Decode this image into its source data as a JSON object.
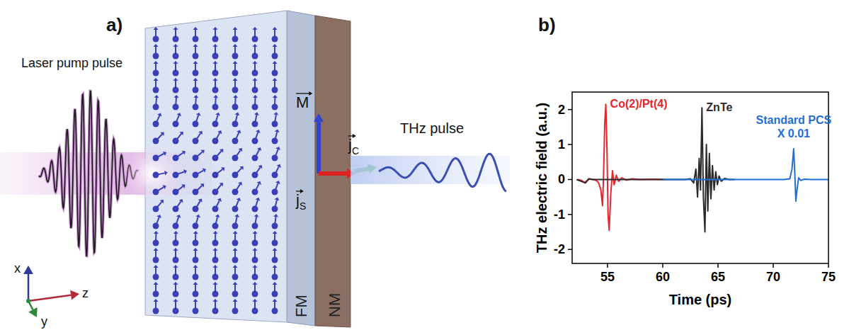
{
  "diagram": {
    "panel_label": "a)",
    "pump_label": "Laser pump pulse",
    "thz_label": "THz pulse",
    "layers": [
      "FM",
      "NM"
    ],
    "vectors": {
      "magnetization": {
        "symbol": "M"
      },
      "spin_current": {
        "symbol": "j",
        "subscript": "S"
      },
      "charge_current": {
        "symbol": "j",
        "subscript": "C"
      }
    },
    "axes": {
      "x": "x",
      "y": "y",
      "z": "z"
    }
  },
  "chart_data": {
    "type": "line",
    "panel_label": "b)",
    "x_label": "Time (ps)",
    "y_label": "THz electric field (a.u.)",
    "xlim": [
      51.8,
      75
    ],
    "ylim": [
      -2.4,
      2.5
    ],
    "xticks": [
      55,
      60,
      65,
      70,
      75
    ],
    "yticks": [
      -2,
      -1,
      0,
      1,
      2
    ],
    "series": [
      {
        "name": "Co(2)/Pt(4)",
        "color": "#e8252a",
        "x": [
          52.3,
          52.6,
          52.9,
          53.1,
          53.4,
          53.7,
          54.0,
          54.2,
          54.4,
          54.55,
          54.65,
          54.75,
          54.85,
          54.95,
          55.05,
          55.15,
          55.3,
          55.45,
          55.6,
          55.8,
          56.0,
          56.3,
          56.7,
          57.2,
          58,
          59,
          60.2
        ],
        "values": [
          0,
          -0.02,
          -0.08,
          -0.05,
          0.02,
          0,
          -0.03,
          -0.1,
          -0.3,
          -0.75,
          0.2,
          1.6,
          2.15,
          0.9,
          -1.0,
          -1.45,
          -0.4,
          0.25,
          -0.15,
          0.12,
          -0.05,
          0.05,
          -0.02,
          0.02,
          0,
          0.01,
          0
        ]
      },
      {
        "name": "ZnTe",
        "color": "#2b2b2b",
        "x": [
          52.2,
          52.6,
          53.0,
          53.3,
          53.6,
          54,
          55,
          56,
          57,
          58,
          59,
          60,
          61,
          62,
          62.5,
          62.8,
          63.0,
          63.15,
          63.3,
          63.42,
          63.55,
          63.68,
          63.82,
          63.95,
          64.08,
          64.22,
          64.36,
          64.5,
          64.65,
          64.8,
          64.95,
          65.1,
          65.3,
          65.6,
          66,
          66.5
        ],
        "values": [
          0,
          -0.05,
          -0.1,
          0.02,
          0,
          0,
          0,
          0,
          0,
          0,
          0,
          0,
          0,
          0,
          0.02,
          -0.1,
          0.3,
          -0.5,
          0.6,
          -0.3,
          2.05,
          -0.5,
          -1.5,
          1.0,
          -0.9,
          0.75,
          -0.55,
          0.4,
          -0.3,
          0.22,
          -0.15,
          0.1,
          -0.05,
          0.03,
          0,
          0
        ]
      },
      {
        "name": "Standard PCS X 0.01",
        "color": "#1f6fd6",
        "x": [
          60,
          62,
          64,
          66,
          68,
          70,
          71,
          71.5,
          71.7,
          71.85,
          71.95,
          72.05,
          72.15,
          72.3,
          72.5,
          72.8,
          73.5,
          74.5,
          75
        ],
        "values": [
          0,
          0,
          0,
          0,
          0,
          0,
          0,
          0.02,
          0.3,
          0.88,
          0.2,
          -0.62,
          -0.3,
          0.05,
          -0.03,
          0.01,
          0,
          0,
          0
        ]
      }
    ]
  }
}
